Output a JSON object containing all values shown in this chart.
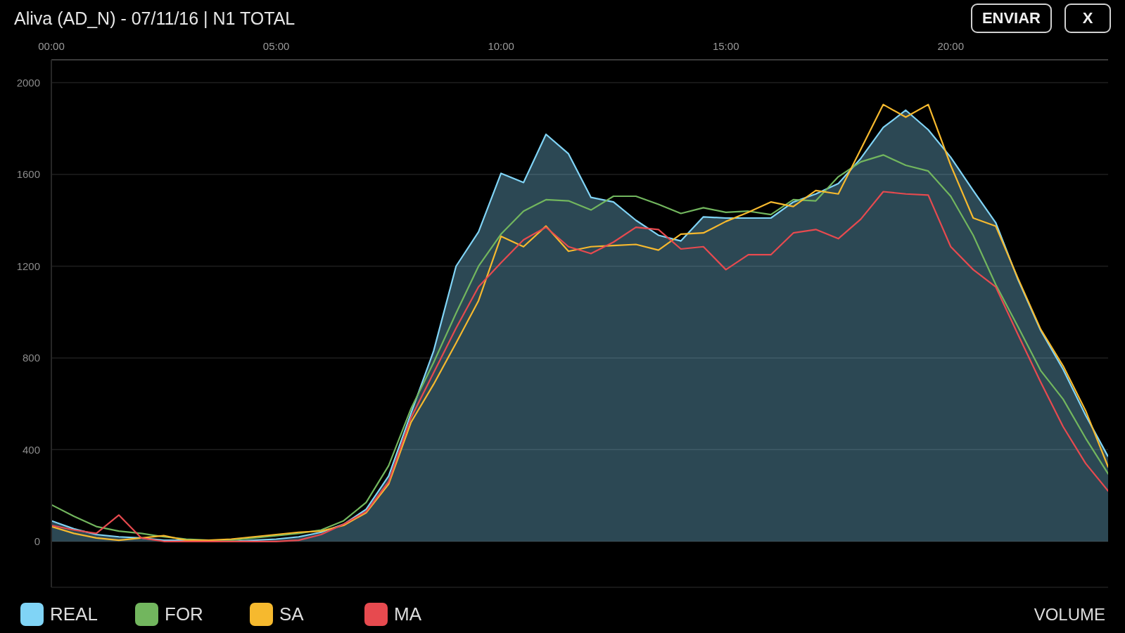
{
  "chart_data": {
    "type": "line",
    "title": "Aliva (AD_N) - 07/11/16 | N1 TOTAL",
    "annotations": [
      "ENVIAR",
      "X",
      "VOLUME"
    ],
    "x": [
      0,
      0.5,
      1,
      1.5,
      2,
      2.5,
      3,
      3.5,
      4,
      4.5,
      5,
      5.5,
      6,
      6.5,
      7,
      7.5,
      8,
      8.5,
      9,
      9.5,
      10,
      10.5,
      11,
      11.5,
      12,
      12.5,
      13,
      13.5,
      14,
      14.5,
      15,
      15.5,
      16,
      16.5,
      17,
      17.5,
      18,
      18.5,
      19,
      19.5,
      20,
      20.5,
      21,
      21.5,
      22,
      22.5,
      23,
      23.5
    ],
    "xlim": [
      0,
      23.5
    ],
    "xticks": [
      {
        "value": 0,
        "label": "00:00"
      },
      {
        "value": 5,
        "label": "05:00"
      },
      {
        "value": 10,
        "label": "10:00"
      },
      {
        "value": 15,
        "label": "15:00"
      },
      {
        "value": 20,
        "label": "20:00"
      }
    ],
    "ylim": [
      -200,
      2100
    ],
    "yticks": [
      0,
      400,
      800,
      1200,
      1600,
      2000
    ],
    "grid": "y",
    "legend": "bottom left",
    "series": [
      {
        "name": "REAL",
        "type": "area",
        "color": "#80d4f6",
        "values": [
          90,
          55,
          30,
          20,
          15,
          5,
          5,
          0,
          0,
          5,
          10,
          20,
          40,
          75,
          140,
          285,
          560,
          830,
          1200,
          1350,
          1605,
          1565,
          1775,
          1690,
          1500,
          1480,
          1400,
          1335,
          1310,
          1415,
          1410,
          1410,
          1410,
          1480,
          1515,
          1560,
          1670,
          1805,
          1880,
          1795,
          1675,
          1530,
          1390,
          1140,
          920,
          750,
          550,
          370
        ]
      },
      {
        "name": "FOR",
        "color": "#72b65e",
        "values": [
          160,
          110,
          65,
          45,
          35,
          20,
          10,
          5,
          5,
          15,
          25,
          35,
          50,
          90,
          170,
          330,
          580,
          780,
          995,
          1200,
          1340,
          1440,
          1490,
          1485,
          1445,
          1505,
          1505,
          1470,
          1430,
          1455,
          1435,
          1440,
          1425,
          1490,
          1485,
          1590,
          1655,
          1685,
          1640,
          1615,
          1505,
          1335,
          1120,
          935,
          745,
          620,
          450,
          295
        ]
      },
      {
        "name": "SA",
        "color": "#f6b92e",
        "values": [
          65,
          35,
          15,
          5,
          15,
          25,
          5,
          5,
          10,
          20,
          30,
          40,
          45,
          70,
          125,
          250,
          520,
          685,
          865,
          1050,
          1330,
          1285,
          1375,
          1265,
          1285,
          1290,
          1295,
          1270,
          1340,
          1345,
          1395,
          1435,
          1480,
          1460,
          1530,
          1515,
          1710,
          1905,
          1850,
          1905,
          1640,
          1410,
          1375,
          1145,
          925,
          765,
          570,
          325
        ]
      },
      {
        "name": "MA",
        "color": "#e74a4f",
        "values": [
          70,
          50,
          35,
          115,
          15,
          0,
          0,
          0,
          0,
          0,
          0,
          5,
          30,
          75,
          130,
          260,
          540,
          735,
          930,
          1110,
          1215,
          1315,
          1370,
          1285,
          1255,
          1305,
          1370,
          1360,
          1275,
          1285,
          1185,
          1250,
          1250,
          1345,
          1360,
          1320,
          1405,
          1525,
          1515,
          1510,
          1285,
          1185,
          1110,
          900,
          695,
          500,
          340,
          220
        ]
      }
    ]
  }
}
